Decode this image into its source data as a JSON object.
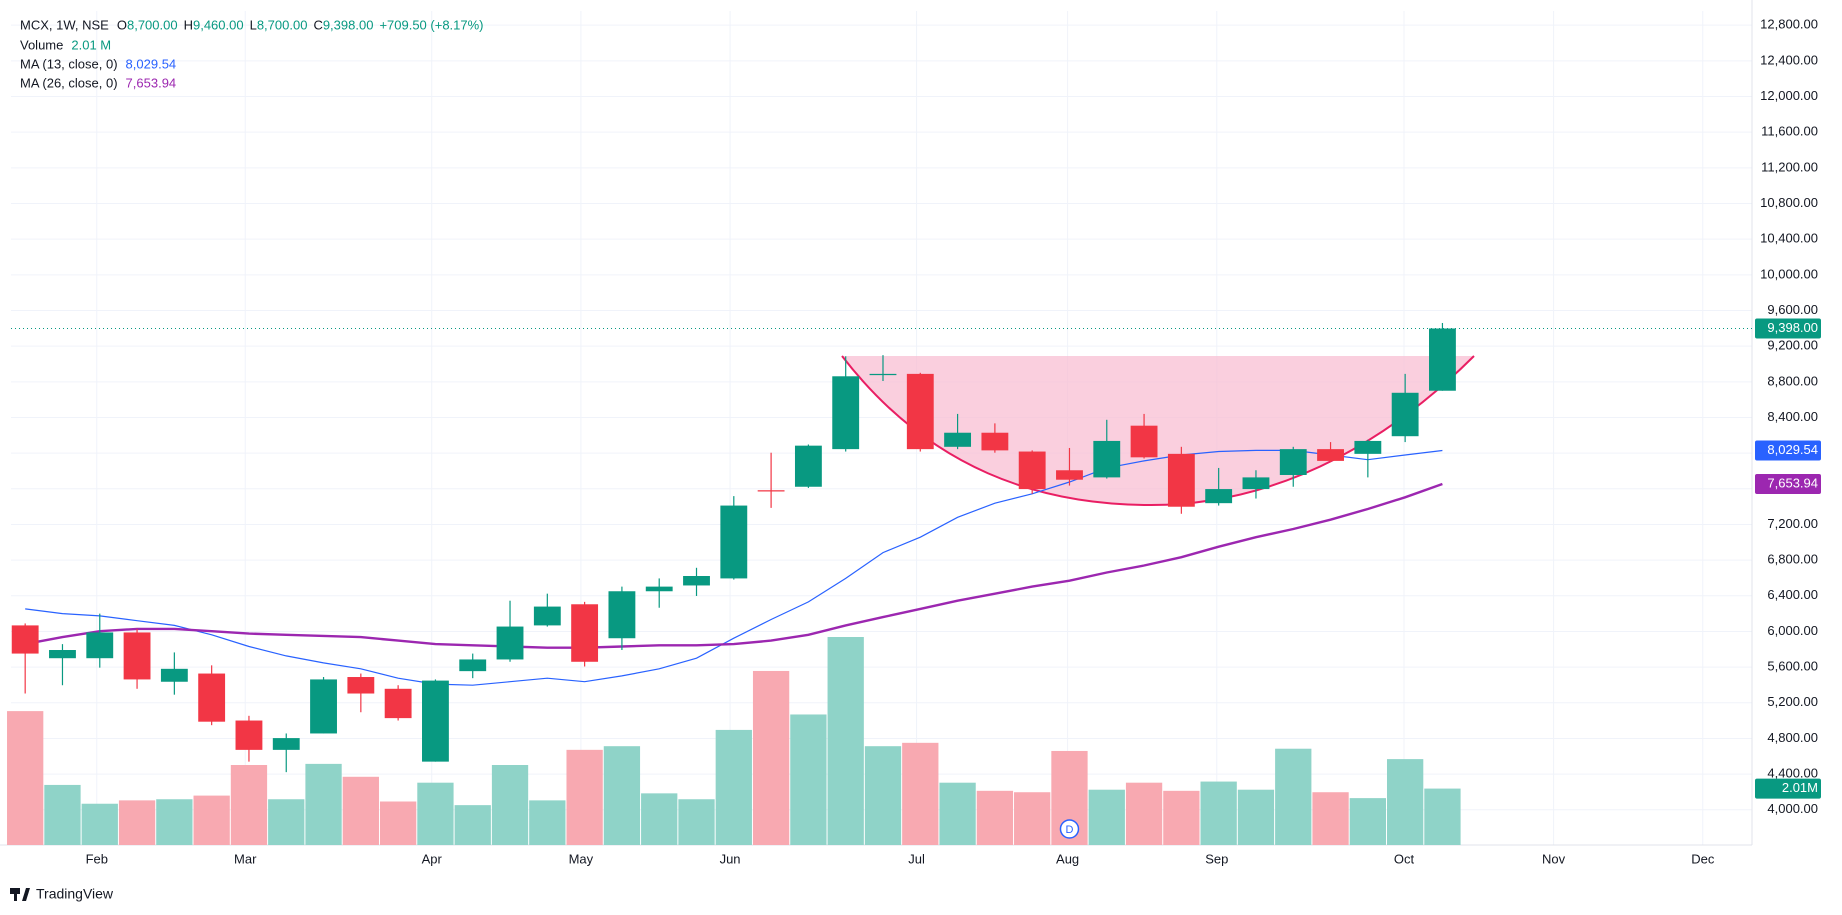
{
  "chart_data": {
    "type": "candlestick",
    "symbol": "MCX, 1W, NSE",
    "legend": {
      "open_key": "O",
      "open": "8,700.00",
      "high_key": "H",
      "high": "9,460.00",
      "low_key": "L",
      "low": "8,700.00",
      "close_key": "C",
      "close": "9,398.00",
      "change": "+709.50 (+8.17%)"
    },
    "up_color": "#089981",
    "down_color": "#f23645",
    "open": [
      6068,
      5700,
      5700,
      5989,
      5436,
      5528,
      5001,
      4672,
      4856,
      5489,
      5357,
      4540,
      5555,
      5686,
      6068,
      6305,
      5924,
      6451,
      6516,
      6595,
      7584,
      7623,
      8045,
      8875,
      8889,
      8071,
      8229,
      8018,
      7808,
      7728,
      8308,
      7992,
      7439,
      7597,
      7755,
      8045,
      7992,
      8190,
      8700
    ],
    "high": [
      6090,
      5858,
      6200,
      6029,
      5765,
      5620,
      5054,
      4856,
      5489,
      5528,
      5397,
      5462,
      5752,
      6345,
      6424,
      6332,
      6503,
      6595,
      6714,
      7518,
      8005,
      8097,
      9086,
      9099,
      8901,
      8440,
      8334,
      8031,
      8058,
      8374,
      8440,
      8071,
      7834,
      7808,
      8071,
      8124,
      8150,
      8889,
      9460
    ],
    "low": [
      5304,
      5397,
      5594,
      5357,
      5291,
      4949,
      4540,
      4422,
      4856,
      5094,
      5001,
      4540,
      5476,
      5660,
      6055,
      5607,
      5792,
      6266,
      6398,
      6582,
      7386,
      7610,
      8018,
      8809,
      8018,
      8045,
      8005,
      7544,
      7636,
      7715,
      7940,
      7320,
      7412,
      7491,
      7623,
      7900,
      7728,
      8124,
      8700
    ],
    "close": [
      5752,
      5792,
      5989,
      5462,
      5581,
      4988,
      4672,
      4804,
      5462,
      5304,
      5028,
      5449,
      5686,
      6055,
      6279,
      5660,
      6451,
      6503,
      6622,
      7412,
      7570,
      8084,
      8862,
      8889,
      8045,
      8229,
      8031,
      7597,
      7702,
      8137,
      7953,
      7399,
      7597,
      7728,
      8045,
      7913,
      8137,
      8677,
      9398
    ],
    "volume": {
      "name": "Volume",
      "value_label": "2.01 M",
      "badge_label": "2.01M",
      "up_color": "#8fd3c8",
      "down_color": "#f8a9b1",
      "values": [
        4.77,
        2.14,
        1.47,
        1.59,
        1.63,
        1.76,
        2.85,
        1.63,
        2.89,
        2.43,
        1.55,
        2.22,
        1.42,
        2.85,
        1.59,
        3.39,
        3.52,
        1.84,
        1.63,
        4.1,
        6.2,
        4.65,
        7.41,
        3.52,
        3.64,
        2.22,
        1.93,
        1.88,
        3.35,
        1.97,
        2.22,
        1.93,
        2.26,
        1.97,
        3.43,
        1.88,
        1.67,
        3.06,
        2.01
      ]
    },
    "series": [
      {
        "name": "MA (13, close, 0)",
        "color": "#2962ff",
        "value_label": "8,029.54",
        "values": [
          6253,
          6200,
          6174,
          6121,
          6068,
          5963,
          5831,
          5726,
          5647,
          5581,
          5476,
          5410,
          5397,
          5436,
          5476,
          5436,
          5502,
          5581,
          5700,
          5924,
          6134,
          6332,
          6595,
          6885,
          7057,
          7280,
          7439,
          7544,
          7676,
          7834,
          7913,
          7979,
          8018,
          8031,
          8031,
          7979,
          7926,
          7979,
          8029.54
        ]
      },
      {
        "name": "MA (26, close, 0)",
        "color": "#9c27b0",
        "value_label": "7,653.94",
        "values": [
          5858,
          5937,
          6003,
          6029,
          6029,
          6003,
          5976,
          5963,
          5950,
          5937,
          5897,
          5858,
          5845,
          5831,
          5818,
          5818,
          5831,
          5845,
          5845,
          5858,
          5897,
          5963,
          6068,
          6161,
          6253,
          6345,
          6424,
          6503,
          6569,
          6661,
          6740,
          6833,
          6951,
          7057,
          7149,
          7254,
          7373,
          7505,
          7653.94
        ]
      }
    ],
    "events": [
      {
        "label": "D",
        "x": 28
      }
    ],
    "ylim": [
      3605,
      12959
    ],
    "yticks": [
      {
        "value": 4000,
        "label": "4,000.00"
      },
      {
        "value": 4400,
        "label": "4,400.00"
      },
      {
        "value": 4800,
        "label": "4,800.00"
      },
      {
        "value": 5200,
        "label": "5,200.00"
      },
      {
        "value": 5600,
        "label": "5,600.00"
      },
      {
        "value": 6000,
        "label": "6,000.00"
      },
      {
        "value": 6400,
        "label": "6,400.00"
      },
      {
        "value": 6800,
        "label": "6,800.00"
      },
      {
        "value": 7200,
        "label": "7,200.00"
      },
      {
        "value": 7600,
        "label": "7,600.00"
      },
      {
        "value": 8000,
        "label": "8,000.00"
      },
      {
        "value": 8400,
        "label": "8,400.00"
      },
      {
        "value": 8800,
        "label": "8,800.00"
      },
      {
        "value": 9200,
        "label": "9,200.00"
      },
      {
        "value": 9600,
        "label": "9,600.00"
      },
      {
        "value": 10000,
        "label": "10,000.00"
      },
      {
        "value": 10400,
        "label": "10,400.00"
      },
      {
        "value": 10800,
        "label": "10,800.00"
      },
      {
        "value": 11200,
        "label": "11,200.00"
      },
      {
        "value": 11600,
        "label": "11,600.00"
      },
      {
        "value": 12000,
        "label": "12,000.00"
      },
      {
        "value": 12400,
        "label": "12,400.00"
      },
      {
        "value": 12800,
        "label": "12,800.00"
      }
    ],
    "xlim": [
      -0.38,
      46.3
    ],
    "xticks": [
      {
        "value": 1.92,
        "label": "Feb"
      },
      {
        "value": 5.9,
        "label": "Mar"
      },
      {
        "value": 10.9,
        "label": "Apr"
      },
      {
        "value": 14.9,
        "label": "May"
      },
      {
        "value": 18.9,
        "label": "Jun"
      },
      {
        "value": 23.9,
        "label": "Jul"
      },
      {
        "value": 27.95,
        "label": "Aug"
      },
      {
        "value": 31.95,
        "label": "Sep"
      },
      {
        "value": 36.97,
        "label": "Oct"
      },
      {
        "value": 40.98,
        "label": "Nov"
      },
      {
        "value": 44.98,
        "label": "Dec"
      }
    ],
    "grid": true,
    "brand": "TradingView"
  }
}
